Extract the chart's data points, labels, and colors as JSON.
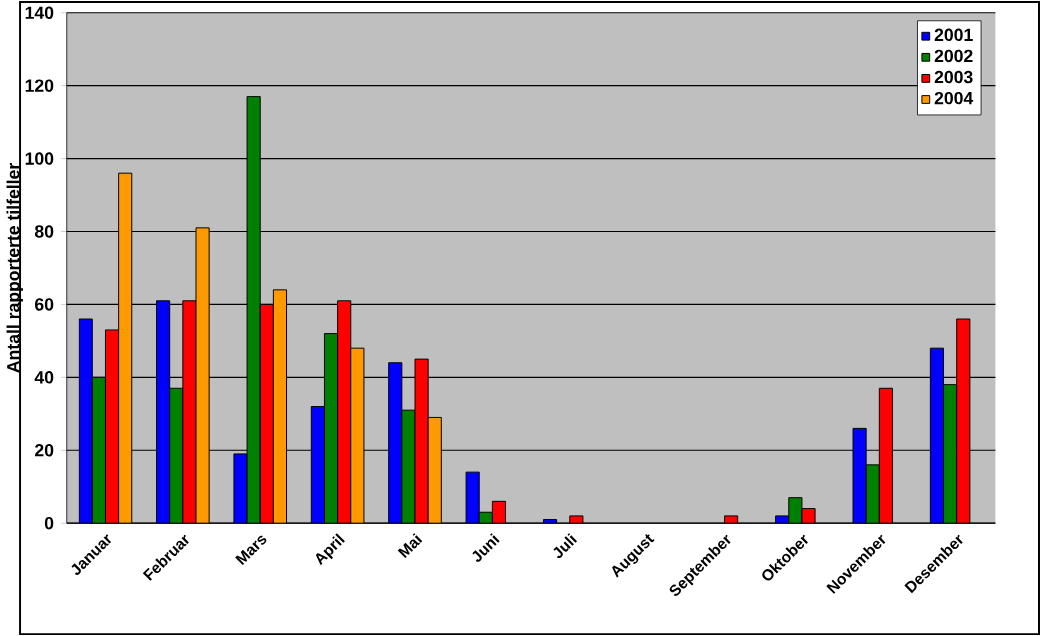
{
  "chart_data": {
    "type": "bar",
    "ylabel": "Antall rapporterte tilfeller",
    "categories": [
      "Januar",
      "Februar",
      "Mars",
      "April",
      "Mai",
      "Juni",
      "Juli",
      "August",
      "September",
      "Oktober",
      "November",
      "Desember"
    ],
    "series": [
      {
        "name": "2001",
        "color": "#0000ff",
        "values": [
          56,
          61,
          19,
          32,
          44,
          14,
          1,
          null,
          null,
          2,
          26,
          48
        ]
      },
      {
        "name": "2002",
        "color": "#008000",
        "values": [
          40,
          37,
          117,
          52,
          31,
          3,
          null,
          null,
          null,
          7,
          16,
          38
        ]
      },
      {
        "name": "2003",
        "color": "#ff0000",
        "values": [
          53,
          61,
          60,
          61,
          45,
          6,
          2,
          null,
          2,
          4,
          37,
          56
        ]
      },
      {
        "name": "2004",
        "color": "#ff9900",
        "values": [
          96,
          81,
          64,
          48,
          29,
          null,
          null,
          null,
          null,
          null,
          null,
          null
        ]
      }
    ],
    "ylim": [
      0,
      140
    ],
    "yticks": [
      0,
      20,
      40,
      60,
      80,
      100,
      120,
      140
    ],
    "grid": "y",
    "legend": "top right"
  }
}
